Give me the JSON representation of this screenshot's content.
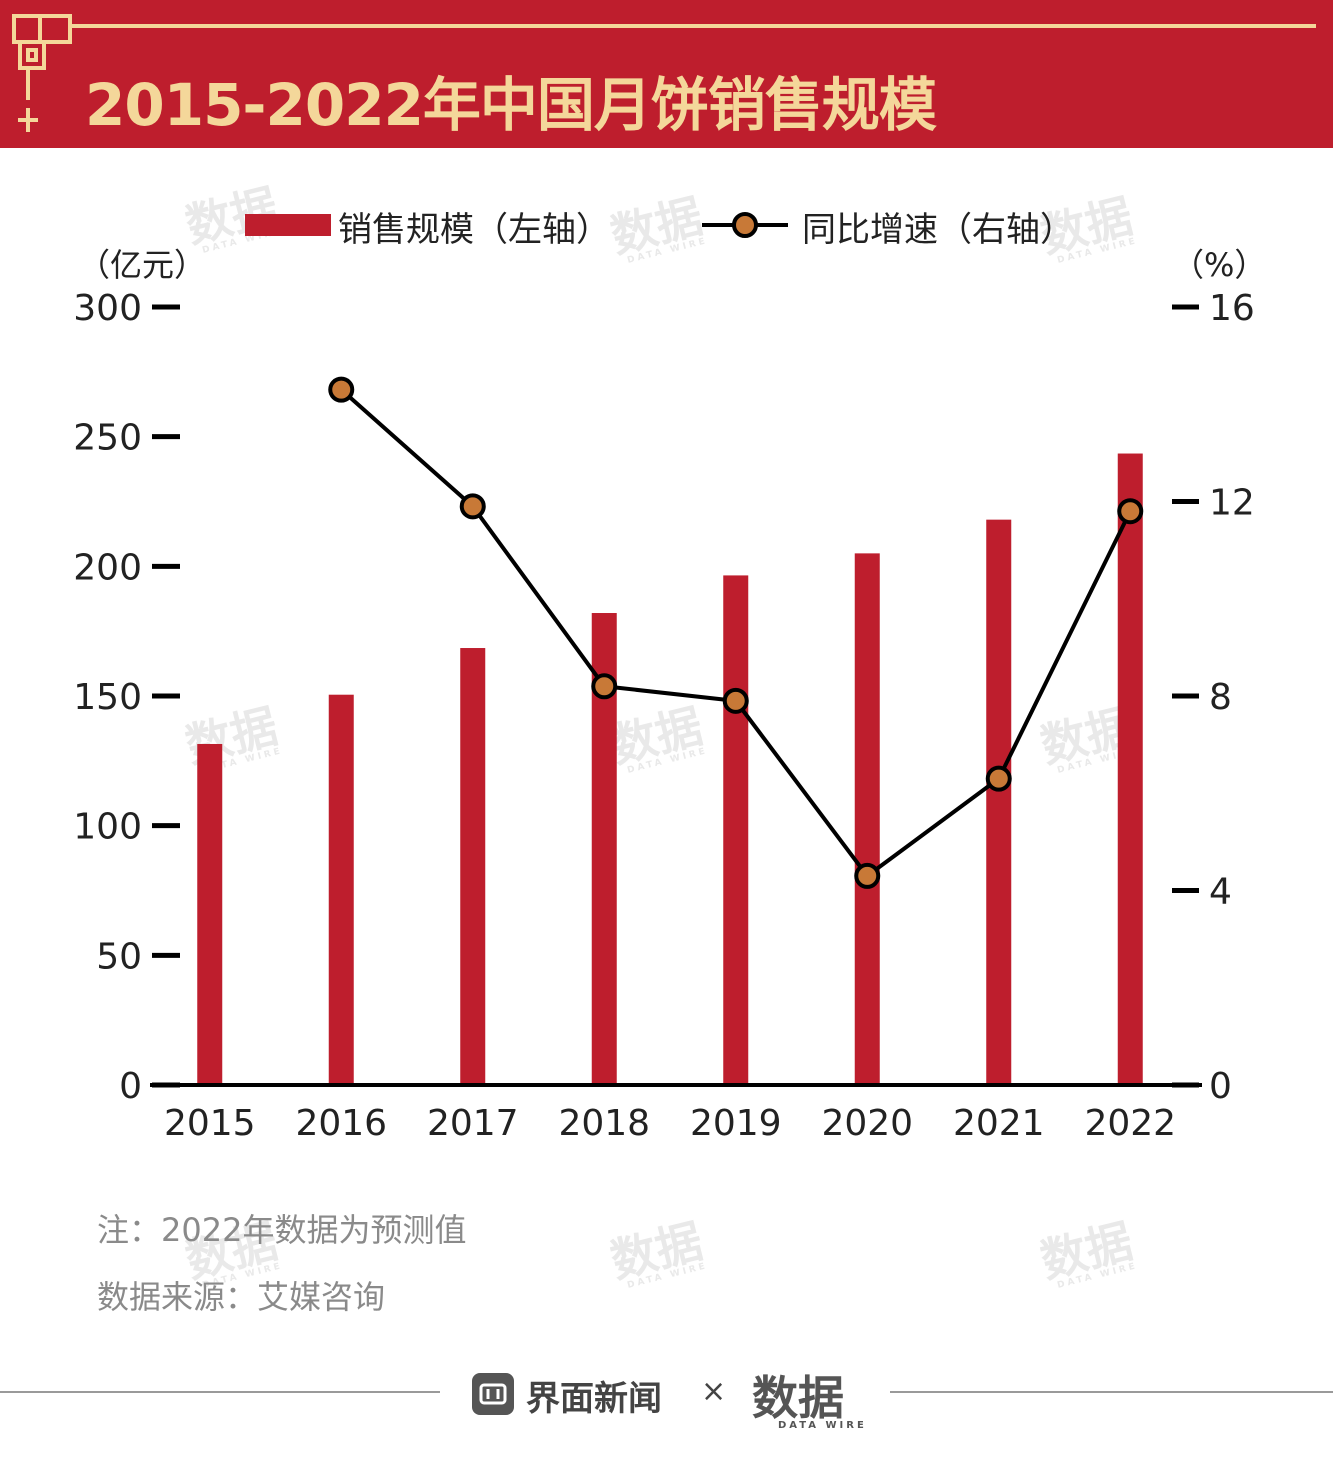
{
  "header": {
    "title": "2015-2022年中国月饼销售规模",
    "bg_color": "#be1e2d",
    "title_color": "#f4d79a"
  },
  "legend": {
    "bar_label": "销售规模（左轴）",
    "line_label": "同比增速（右轴）"
  },
  "axis": {
    "left_unit": "（亿元）",
    "right_unit": "（%）"
  },
  "chart_data": {
    "type": "bar",
    "categories": [
      "2015",
      "2016",
      "2017",
      "2018",
      "2019",
      "2020",
      "2021",
      "2022"
    ],
    "series": [
      {
        "name": "销售规模（左轴）",
        "type": "bar",
        "axis": "left",
        "color": "#be1e2d",
        "values": [
          131.5,
          150.5,
          168.5,
          182,
          196.5,
          205,
          218,
          243.5
        ]
      },
      {
        "name": "同比增速（右轴）",
        "type": "line",
        "axis": "right",
        "color": "#000000",
        "marker_color": "#c87937",
        "values": [
          null,
          14.3,
          11.9,
          8.2,
          7.9,
          4.3,
          6.3,
          11.8
        ]
      }
    ],
    "left_axis": {
      "range": [
        0,
        300
      ],
      "ticks": [
        "0",
        "50",
        "100",
        "150",
        "200",
        "250",
        "300"
      ]
    },
    "right_axis": {
      "range": [
        0,
        16
      ],
      "ticks": [
        "0",
        "4",
        "8",
        "12",
        "16"
      ]
    },
    "grid": false,
    "legend_position": "top"
  },
  "notes": {
    "note": "注：2022年数据为预测值",
    "source": "数据来源：艾媒咨询"
  },
  "watermark": {
    "text": "数据",
    "sub": "DATA WIRE"
  },
  "footer": {
    "brand": "界面新闻",
    "separator": "×",
    "partner": "数据",
    "partner_sub": "DATA WIRE"
  }
}
